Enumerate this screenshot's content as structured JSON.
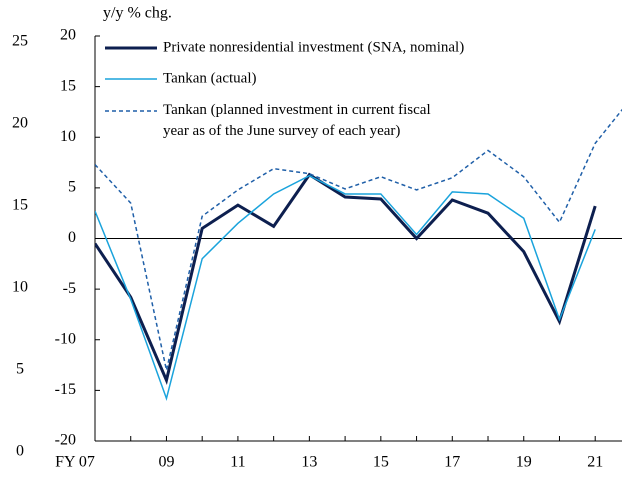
{
  "chart_data": {
    "type": "line",
    "y_axis_label": "y/y % chg.",
    "x": [
      7,
      8,
      9,
      10,
      11,
      12,
      13,
      14,
      15,
      16,
      17,
      18,
      19,
      20,
      21,
      22
    ],
    "xlim": [
      7,
      21.75
    ],
    "xticks": [
      {
        "value": 7,
        "label": "FY 07"
      },
      {
        "value": 9,
        "label": "09"
      },
      {
        "value": 11,
        "label": "11"
      },
      {
        "value": 13,
        "label": "13"
      },
      {
        "value": 15,
        "label": "15"
      },
      {
        "value": 17,
        "label": "17"
      },
      {
        "value": 19,
        "label": "19"
      },
      {
        "value": 21,
        "label": "21"
      }
    ],
    "ylim": [
      -20,
      20
    ],
    "yticks": [
      -20,
      -15,
      -10,
      -5,
      0,
      5,
      10,
      15,
      20
    ],
    "y2lim": [
      0,
      25
    ],
    "y2ticks": [
      0,
      5,
      10,
      15,
      20,
      25
    ],
    "legend": "upper left",
    "series": [
      {
        "name": "Private nonresidential investment (SNA, nominal)",
        "color": "#0d1f4f",
        "style": "solid",
        "width": 3,
        "values": [
          -0.5,
          -5.8,
          -14.0,
          1.0,
          3.3,
          1.2,
          6.3,
          4.1,
          3.9,
          0.0,
          3.8,
          2.5,
          -1.3,
          -8.2,
          3.2,
          null
        ]
      },
      {
        "name": "Tankan (actual)",
        "color": "#1aa3dc",
        "style": "solid",
        "width": 1.5,
        "values": [
          2.7,
          -6.0,
          -15.8,
          -2.0,
          1.5,
          4.4,
          6.2,
          4.4,
          4.4,
          0.4,
          4.6,
          4.4,
          2.0,
          -8.0,
          0.9,
          null
        ]
      },
      {
        "name": "Tankan (planned investment in current fiscal year as of the June survey of each year)",
        "color": "#1f5fa8",
        "style": "dashed",
        "width": 1.5,
        "values": [
          7.3,
          3.5,
          -13.0,
          2.2,
          4.8,
          6.9,
          6.4,
          4.9,
          6.1,
          4.8,
          6.0,
          8.7,
          6.1,
          1.6,
          9.4,
          13.8
        ]
      }
    ]
  }
}
